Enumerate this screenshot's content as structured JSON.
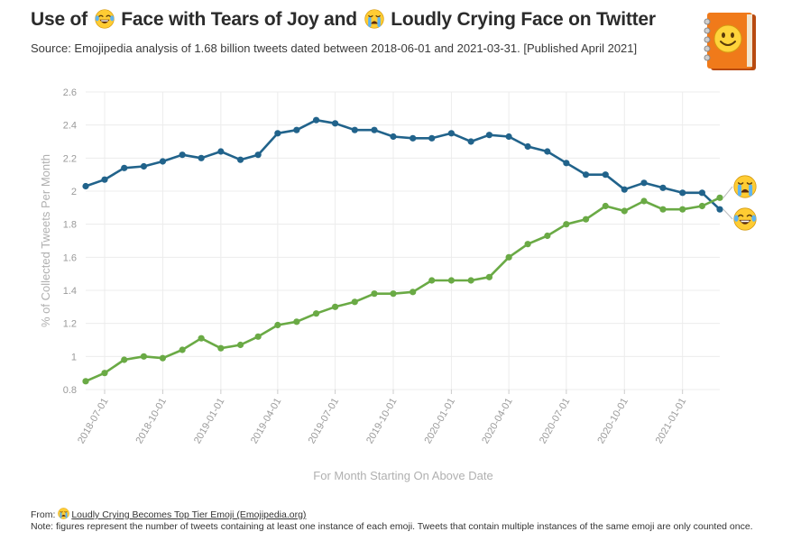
{
  "header": {
    "title_part1": "Use of",
    "title_part2": "Face with Tears of Joy and",
    "title_part3": "Loudly Crying Face on Twitter",
    "subtitle": "Source: Emojipedia analysis of 1.68 billion tweets dated between 2018-06-01 and 2021-03-31. [Published April 2021]"
  },
  "footer": {
    "from_label": "From:",
    "link_text": "Loudly Crying Becomes Top Tier Emoji (Emojipedia.org)",
    "note": "Note: figures represent the number of tweets containing at least one instance of each emoji. Tweets that contain multiple instances of the same emoji are only counted once."
  },
  "icons": {
    "title_emoji_1": "face-with-tears-of-joy-icon",
    "title_emoji_2": "loudly-crying-face-icon",
    "logo": "emojipedia-book-logo-icon"
  },
  "colors": {
    "series_joy": "#21638b",
    "series_crying": "#6aaa45",
    "grid": "#ececec"
  },
  "chart_data": {
    "type": "line",
    "xlabel": "For Month Starting On Above Date",
    "ylabel": "% of Collected Tweets Per Month",
    "ylim": [
      0.8,
      2.6
    ],
    "yticks": [
      "0.8",
      "1",
      "1.2",
      "1.4",
      "1.6",
      "1.8",
      "2",
      "2.2",
      "2.4",
      "2.6"
    ],
    "xticks": [
      "2018-07-01",
      "2018-10-01",
      "2019-01-01",
      "2019-04-01",
      "2019-07-01",
      "2019-10-01",
      "2020-01-01",
      "2020-04-01",
      "2020-07-01",
      "2020-10-01",
      "2021-01-01"
    ],
    "x": [
      "2018-06-01",
      "2018-07-01",
      "2018-08-01",
      "2018-09-01",
      "2018-10-01",
      "2018-11-01",
      "2018-12-01",
      "2019-01-01",
      "2019-02-01",
      "2019-03-01",
      "2019-04-01",
      "2019-05-01",
      "2019-06-01",
      "2019-07-01",
      "2019-08-01",
      "2019-09-01",
      "2019-10-01",
      "2019-11-01",
      "2019-12-01",
      "2020-01-01",
      "2020-02-01",
      "2020-03-01",
      "2020-04-01",
      "2020-05-01",
      "2020-06-01",
      "2020-07-01",
      "2020-08-01",
      "2020-09-01",
      "2020-10-01",
      "2020-11-01",
      "2020-12-01",
      "2021-01-01",
      "2021-02-01",
      "2021-03-01"
    ],
    "grid": true,
    "series": [
      {
        "icon": "face-with-tears-of-joy-icon",
        "color": "#21638b",
        "values": [
          2.03,
          2.07,
          2.14,
          2.15,
          2.18,
          2.22,
          2.2,
          2.24,
          2.19,
          2.22,
          2.35,
          2.37,
          2.43,
          2.41,
          2.37,
          2.37,
          2.33,
          2.32,
          2.32,
          2.35,
          2.3,
          2.34,
          2.33,
          2.27,
          2.24,
          2.17,
          2.1,
          2.1,
          2.01,
          2.05,
          2.02,
          1.99,
          1.99,
          1.89
        ]
      },
      {
        "icon": "loudly-crying-face-icon",
        "color": "#6aaa45",
        "values": [
          0.85,
          0.9,
          0.98,
          1.0,
          0.99,
          1.04,
          1.11,
          1.05,
          1.07,
          1.12,
          1.19,
          1.21,
          1.26,
          1.3,
          1.33,
          1.38,
          1.38,
          1.39,
          1.46,
          1.46,
          1.46,
          1.48,
          1.6,
          1.68,
          1.73,
          1.8,
          1.83,
          1.91,
          1.88,
          1.94,
          1.89,
          1.89,
          1.91,
          1.96
        ]
      }
    ]
  }
}
